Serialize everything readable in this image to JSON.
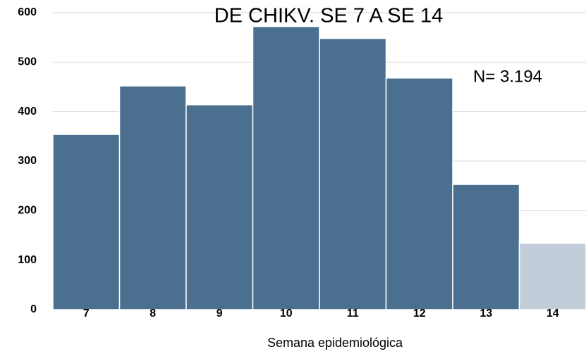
{
  "chart_data": {
    "type": "bar",
    "title": "DE CHIKV. SE 7 A SE 14",
    "annotation": "N= 3.194",
    "x_label": "Semana epidemiológica",
    "categories": [
      "7",
      "8",
      "9",
      "10",
      "11",
      "12",
      "13",
      "14"
    ],
    "values": [
      354,
      452,
      414,
      572,
      548,
      468,
      253,
      134
    ],
    "colors": [
      "#4a6f8f",
      "#4a6f8f",
      "#4a6f8f",
      "#4a6f8f",
      "#4a6f8f",
      "#4a6f8f",
      "#4a6f8f",
      "#c3ccd9"
    ],
    "ylim": [
      0,
      600
    ],
    "yticks": [
      0,
      100,
      200,
      300,
      400,
      500,
      600
    ],
    "grid": true
  }
}
